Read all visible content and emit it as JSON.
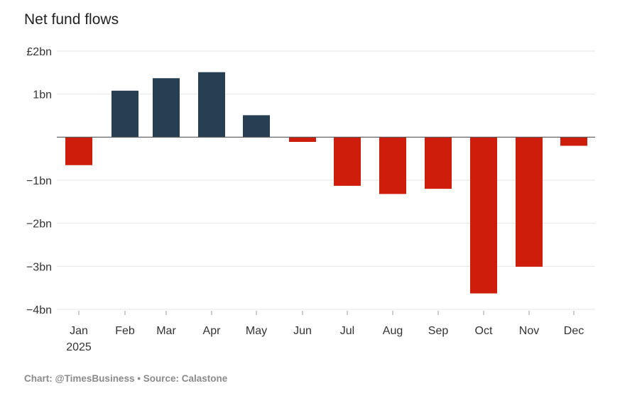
{
  "chart_data": {
    "type": "bar",
    "title": "Net fund flows",
    "categories": [
      "Jan",
      "Feb",
      "Mar",
      "Apr",
      "May",
      "Jun",
      "Jul",
      "Aug",
      "Sep",
      "Oct",
      "Nov",
      "Dec"
    ],
    "category_sublabels": [
      "2025",
      "",
      "",
      "",
      "",
      "",
      "",
      "",
      "",
      "",
      "",
      ""
    ],
    "values": [
      -0.65,
      1.08,
      1.37,
      1.51,
      0.51,
      -0.11,
      -1.13,
      -1.32,
      -1.2,
      -3.63,
      -3.01,
      -0.2
    ],
    "ylim": [
      -4,
      2
    ],
    "yticks": [
      {
        "value": 2,
        "label": "£2bn"
      },
      {
        "value": 1,
        "label": "1bn"
      },
      {
        "value": -1,
        "label": "−1bn"
      },
      {
        "value": -2,
        "label": "−2bn"
      },
      {
        "value": -3,
        "label": "−3bn"
      },
      {
        "value": -4,
        "label": "−4bn"
      }
    ],
    "xlabel": "",
    "ylabel": "",
    "grid": true,
    "colors": {
      "positive": "#263f52",
      "negative": "#cf1d0c",
      "grid": "#e6e6e6",
      "zero_line": "#555555"
    }
  },
  "footer": "Chart: @TimesBusiness • Source: Calastone"
}
